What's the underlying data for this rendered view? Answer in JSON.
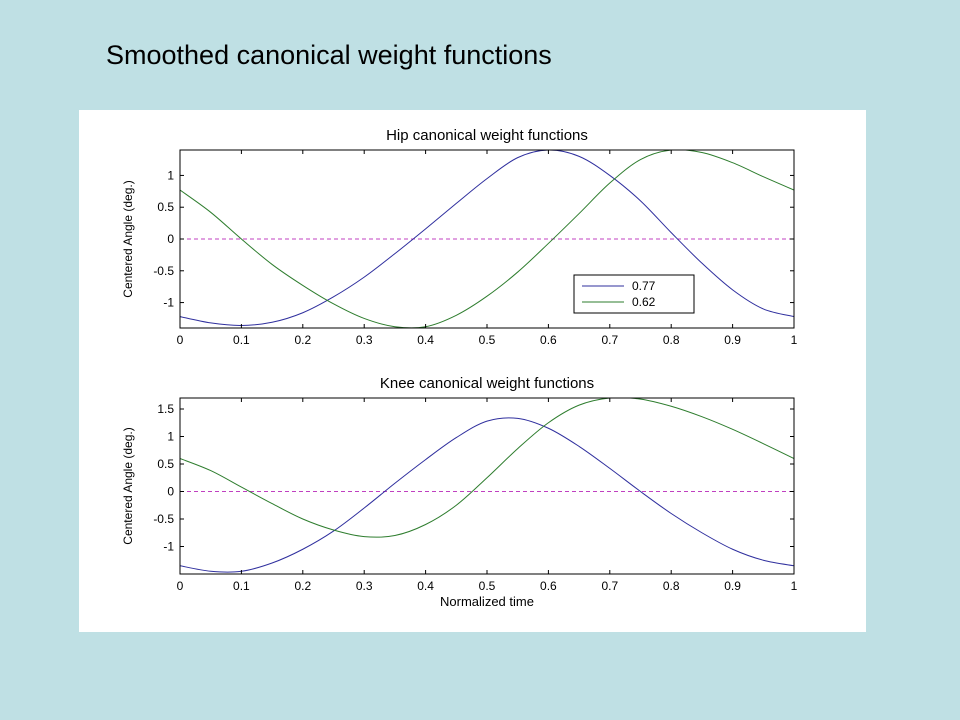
{
  "slide": {
    "title": "Smoothed canonical weight functions"
  },
  "colors": {
    "series1": "#2f2f9e",
    "series2": "#2e7d2e",
    "zero_line": "#c040c0",
    "background": "#bfe0e4"
  },
  "chart_data": [
    {
      "type": "line",
      "title": "Hip canonical weight functions",
      "xlabel": "",
      "ylabel": "Centered Angle (deg.)",
      "xlim": [
        0,
        1
      ],
      "ylim": [
        -1.4,
        1.4
      ],
      "xticks": [
        "0",
        "0.1",
        "0.2",
        "0.3",
        "0.4",
        "0.5",
        "0.6",
        "0.7",
        "0.8",
        "0.9",
        "1"
      ],
      "yticks": [
        "-1",
        "-0.5",
        "0",
        "0.5",
        "1"
      ],
      "ytick_values": [
        -1,
        -0.5,
        0,
        0.5,
        1
      ],
      "legend": {
        "position": "lower-right",
        "entries": [
          "0.77",
          "0.62"
        ]
      },
      "zero_line": true,
      "x": [
        0,
        0.05,
        0.1,
        0.15,
        0.2,
        0.25,
        0.3,
        0.35,
        0.4,
        0.45,
        0.5,
        0.55,
        0.6,
        0.65,
        0.7,
        0.75,
        0.8,
        0.85,
        0.9,
        0.95,
        1
      ],
      "series": [
        {
          "name": "0.77",
          "values": [
            -1.22,
            -1.32,
            -1.36,
            -1.31,
            -1.16,
            -0.91,
            -0.6,
            -0.23,
            0.16,
            0.56,
            0.95,
            1.28,
            1.4,
            1.3,
            1.0,
            0.6,
            0.1,
            -0.38,
            -0.8,
            -1.1,
            -1.22
          ]
        },
        {
          "name": "0.62",
          "values": [
            0.77,
            0.42,
            0.0,
            -0.4,
            -0.73,
            -1.02,
            -1.25,
            -1.38,
            -1.38,
            -1.2,
            -0.9,
            -0.52,
            -0.07,
            0.4,
            0.88,
            1.25,
            1.4,
            1.36,
            1.2,
            0.98,
            0.77
          ]
        }
      ]
    },
    {
      "type": "line",
      "title": "Knee canonical weight functions",
      "xlabel": "Normalized time",
      "ylabel": "Centered Angle (deg.)",
      "xlim": [
        0,
        1
      ],
      "ylim": [
        -1.5,
        1.7
      ],
      "xticks": [
        "0",
        "0.1",
        "0.2",
        "0.3",
        "0.4",
        "0.5",
        "0.6",
        "0.7",
        "0.8",
        "0.9",
        "1"
      ],
      "yticks": [
        "-1",
        "-0.5",
        "0",
        "0.5",
        "1",
        "1.5"
      ],
      "ytick_values": [
        -1,
        -0.5,
        0,
        0.5,
        1,
        1.5
      ],
      "zero_line": true,
      "x": [
        0,
        0.05,
        0.1,
        0.15,
        0.2,
        0.25,
        0.3,
        0.35,
        0.4,
        0.45,
        0.5,
        0.55,
        0.6,
        0.65,
        0.7,
        0.75,
        0.8,
        0.85,
        0.9,
        0.95,
        1
      ],
      "series": [
        {
          "name": "0.77",
          "values": [
            -1.35,
            -1.45,
            -1.45,
            -1.3,
            -1.05,
            -0.72,
            -0.3,
            0.15,
            0.58,
            0.98,
            1.28,
            1.33,
            1.15,
            0.82,
            0.42,
            0.0,
            -0.4,
            -0.75,
            -1.05,
            -1.25,
            -1.35
          ]
        },
        {
          "name": "0.62",
          "values": [
            0.6,
            0.38,
            0.08,
            -0.22,
            -0.5,
            -0.7,
            -0.82,
            -0.8,
            -0.6,
            -0.25,
            0.25,
            0.78,
            1.25,
            1.57,
            1.7,
            1.68,
            1.55,
            1.36,
            1.13,
            0.87,
            0.6
          ]
        }
      ]
    }
  ]
}
